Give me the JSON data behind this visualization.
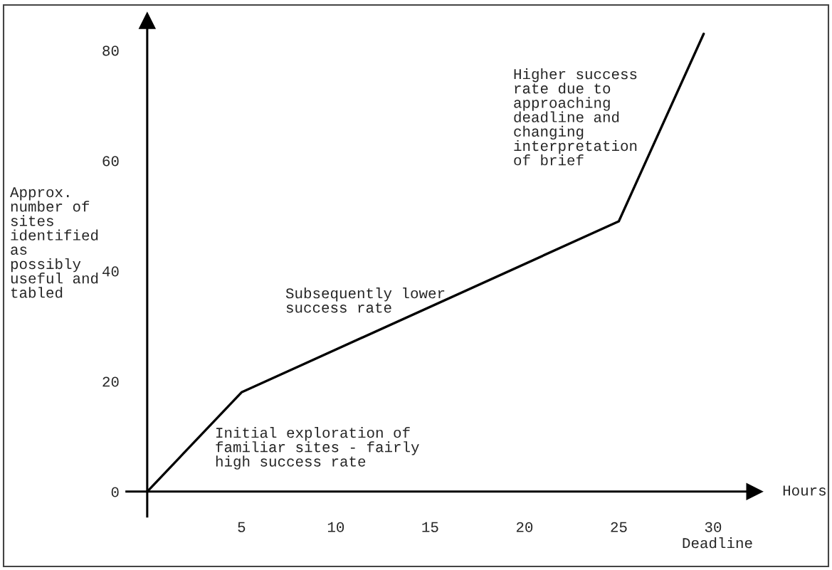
{
  "chart_data": {
    "type": "line",
    "xlabel": "Hours",
    "ylabel": "Approx.\nnumber of\nsites\nidentified\nas\npossibly\nuseful and\ntabled",
    "x": [
      0,
      5,
      25,
      29.5
    ],
    "series": [
      {
        "color": "#000000",
        "values": [
          0,
          18,
          49,
          83
        ]
      }
    ],
    "xlim": [
      -1.1,
      32.2
    ],
    "ylim": [
      -4.5,
      85.4
    ],
    "xticks": [
      5,
      10,
      15,
      20,
      25,
      30
    ],
    "yticks": [
      0,
      20,
      40,
      60,
      80
    ],
    "grid": false,
    "legend": false,
    "marker": "none",
    "line_style": "solid",
    "annotations": [
      "Initial exploration of\nfamiliar sites - fairly\nhigh success rate",
      "Subsequently lower\nsuccess rate",
      "Higher success\nrate due to\napproaching\ndeadline and\nchanging\ninterpretation\nof brief",
      "Deadline"
    ]
  }
}
